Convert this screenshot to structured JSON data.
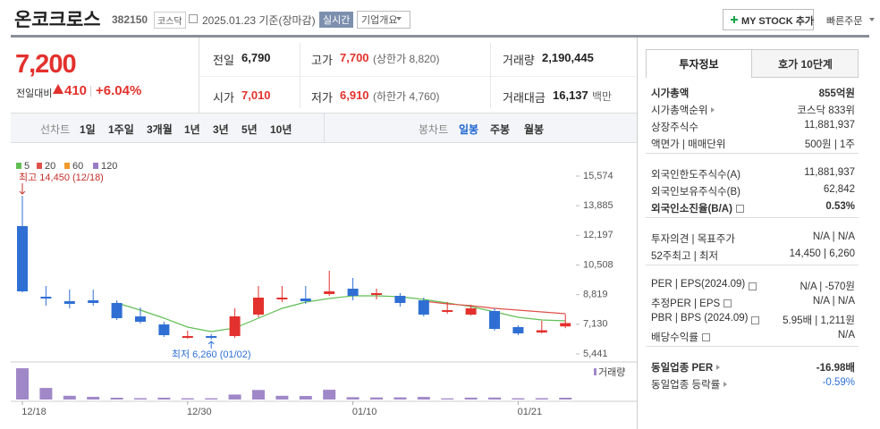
{
  "header": {
    "name": "온코크로스",
    "code": "382150",
    "market": "코스닥",
    "date": "2025.01.23 기준(장마감)",
    "realtime": "실시간",
    "company": "기업개요",
    "mystock": "MY STOCK 추가",
    "quick_order": "빠른주문"
  },
  "summary": {
    "price": "7,200",
    "change_label": "전일대비",
    "change": "410",
    "change_rate": "+6.04%",
    "items": [
      {
        "label": "전일",
        "value": "6,790"
      },
      {
        "label": "고가",
        "value": "7,700",
        "note": "(상한가 8,820)"
      },
      {
        "label": "거래량",
        "value": "2,190,445"
      },
      {
        "label": "시가",
        "value": "7,010"
      },
      {
        "label": "저가",
        "value": "6,910",
        "note": "(하한가 4,760)"
      },
      {
        "label": "거래대금",
        "value": "16,137",
        "note": "백만"
      }
    ]
  },
  "period_tabs": {
    "line_label": "선차트",
    "line": [
      "1일",
      "1주일",
      "3개월",
      "1년",
      "3년",
      "5년",
      "10년"
    ],
    "candle_label": "봉차트",
    "candle": [
      "일봉",
      "주봉",
      "월봉"
    ]
  },
  "chart_data": {
    "type": "candlestick",
    "categories": [
      "12/18",
      null,
      null,
      null,
      null,
      null,
      null,
      "12/30",
      null,
      null,
      null,
      null,
      null,
      null,
      "01/10",
      null,
      null,
      null,
      null,
      null,
      null,
      "01/21",
      null,
      null
    ],
    "open": [
      12722,
      8700,
      8445,
      8496,
      8344,
      7580,
      7121,
      6357,
      6459,
      6459,
      7682,
      8547,
      8598,
      8853,
      9158,
      8802,
      8751,
      8496,
      7835,
      7682,
      7885,
      6969,
      6663,
      7010
    ],
    "high": [
      14450,
      9311,
      9107,
      9107,
      8496,
      8089,
      7274,
      6765,
      6560,
      8038,
      9311,
      9311,
      9311,
      10177,
      9769,
      9158,
      8903,
      8649,
      8394,
      8242,
      8038,
      7070,
      7325,
      7700
    ],
    "low": [
      8950,
      8191,
      8038,
      8191,
      7376,
      7172,
      6408,
      6300,
      6260,
      6357,
      7529,
      8394,
      8293,
      8751,
      8496,
      8547,
      8140,
      7580,
      7732,
      7631,
      6765,
      6510,
      6612,
      6910
    ],
    "close": [
      9005,
      8598,
      8293,
      8344,
      7478,
      7274,
      6510,
      6459,
      6357,
      7580,
      8649,
      8649,
      8445,
      9005,
      8751,
      8903,
      8344,
      7682,
      7936,
      8038,
      6867,
      6612,
      6790,
      7200
    ],
    "up_color": "#e3312d",
    "down_color": "#2f6fd4",
    "moving_averages": [
      {
        "name": "5",
        "color": "#62bf55",
        "values": [
          null,
          null,
          null,
          null,
          8344,
          7936,
          7478,
          6969,
          6714,
          6918,
          7478,
          8038,
          8394,
          8598,
          8751,
          8751,
          8700,
          8547,
          8344,
          8140,
          7835,
          7529,
          7376,
          7325
        ]
      },
      {
        "name": "20",
        "color": "#e0504b",
        "values": [
          null,
          null,
          null,
          null,
          null,
          null,
          null,
          null,
          null,
          null,
          null,
          null,
          null,
          null,
          null,
          null,
          null,
          8445,
          8293,
          8191,
          8038,
          7936,
          7835,
          7733
        ]
      },
      {
        "name": "60",
        "color": "#f09a2c",
        "values": [
          null,
          null,
          null,
          null,
          null,
          null,
          null,
          null,
          null,
          null,
          null,
          null,
          null,
          null,
          null,
          null,
          null,
          null,
          null,
          null,
          null,
          null,
          null,
          null
        ]
      },
      {
        "name": "120",
        "color": "#9a7bc6",
        "values": [
          null,
          null,
          null,
          null,
          null,
          null,
          null,
          null,
          null,
          null,
          null,
          null,
          null,
          null,
          null,
          null,
          null,
          null,
          null,
          null,
          null,
          null,
          null,
          null
        ]
      }
    ],
    "ylim": [
      5441,
      15574
    ],
    "yticks": [
      {
        "value": 15574,
        "label": "15,574"
      },
      {
        "value": 13885,
        "label": "13,885"
      },
      {
        "value": 12197,
        "label": "12,197"
      },
      {
        "value": 10508,
        "label": "10,508"
      },
      {
        "value": 8819,
        "label": "8,819"
      },
      {
        "value": 7130,
        "label": "7,130"
      },
      {
        "value": 5441,
        "label": "5,441"
      }
    ],
    "annotations": {
      "high": "최고 14,450 (12/18)",
      "low": "최저 6,260 (01/02)"
    },
    "volume": {
      "name": "거래량",
      "color": "#a088c8",
      "ylim": [
        0,
        40000000
      ],
      "values": [
        37800000,
        14000000,
        4500000,
        3200000,
        2200000,
        1600000,
        2200000,
        1500000,
        1500000,
        6000000,
        11500000,
        4500000,
        4300000,
        11800000,
        2800000,
        2500000,
        2600000,
        3100000,
        1400000,
        2300000,
        2400000,
        1500000,
        1600000,
        2190445
      ]
    }
  },
  "invest": {
    "tabs": [
      "투자정보",
      "호가 10단계"
    ],
    "sections": [
      [
        {
          "label": "시가총액",
          "value": "855억원",
          "bold": true
        },
        {
          "label": "시가총액순위",
          "value": "코스닥 833위",
          "arrow": true
        },
        {
          "label": "상장주식수",
          "value": "11,881,937"
        },
        {
          "label": "액면가 | 매매단위",
          "value": "500원 | 1주"
        }
      ],
      [
        {
          "label": "외국인한도주식수(A)",
          "value": "11,881,937"
        },
        {
          "label": "외국인보유주식수(B)",
          "value": "62,842"
        },
        {
          "label": "외국인소진율(B/A)",
          "value": "0.53%",
          "bold": true,
          "info": true
        }
      ],
      [
        {
          "label": "투자의견 | 목표주가",
          "value": "N/A | N/A"
        },
        {
          "label": "52주최고 | 최저",
          "value": "14,450 | 6,260"
        }
      ],
      [
        {
          "label": "PER | EPS(2024.09)",
          "value": "N/A | -570원",
          "info": true
        },
        {
          "label": "추정PER | EPS",
          "value": "N/A | N/A",
          "info": true
        },
        {
          "label": "PBR | BPS (2024.09)",
          "value": "5.95배 | 1,211원",
          "info": true
        },
        {
          "label": "배당수익률",
          "value": "N/A",
          "info": true
        }
      ],
      [
        {
          "label": "동일업종 PER",
          "value": "-16.98배",
          "bold": true,
          "arrow": true
        },
        {
          "label": "동일업종 등락률",
          "value": "-0.59%",
          "arrow": true,
          "color": "#2f6fd4"
        }
      ]
    ]
  }
}
